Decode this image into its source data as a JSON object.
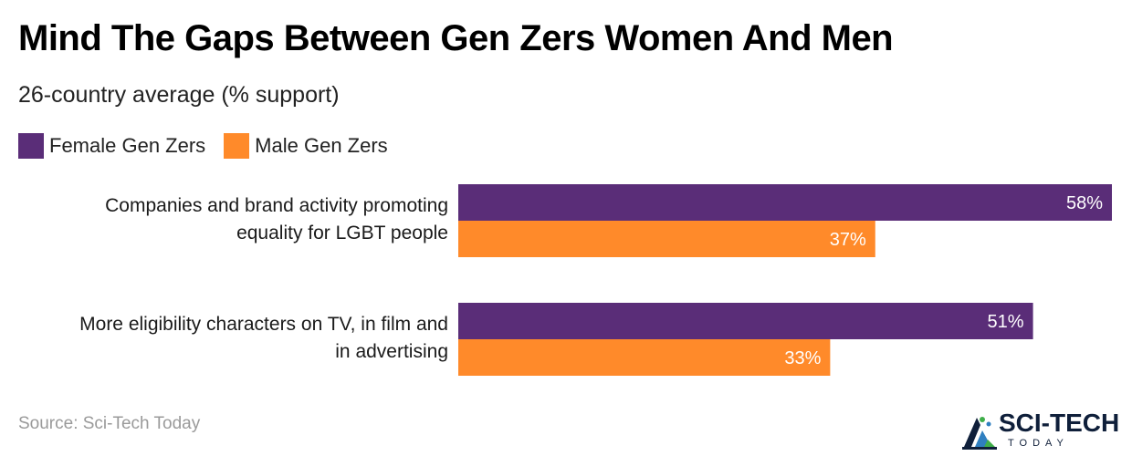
{
  "title": "Mind The Gaps Between Gen Zers Women And Men",
  "subtitle": "26-country average (% support)",
  "legend": {
    "female": {
      "label": "Female Gen Zers",
      "color": "#5a2d78"
    },
    "male": {
      "label": "Male Gen Zers",
      "color": "#ff8a2a"
    }
  },
  "source": "Source: Sci-Tech Today",
  "logo": {
    "name": "SCI-TECH",
    "tagline": "TODAY",
    "icon": "sci-tech-logo-icon"
  },
  "chart_data": {
    "type": "bar",
    "orientation": "horizontal",
    "title": "Mind The Gaps Between Gen Zers Women And Men",
    "subtitle": "26-country average (% support)",
    "categories": [
      [
        "Companies and brand activity promoting",
        "equality for LGBT people"
      ],
      [
        "More eligibility characters on TV, in film and",
        "in advertising"
      ]
    ],
    "series": [
      {
        "name": "Female Gen Zers",
        "values": [
          58,
          51
        ],
        "labels": [
          "58%",
          "51%"
        ],
        "color": "#5a2d78"
      },
      {
        "name": "Male Gen Zers",
        "values": [
          37,
          33
        ],
        "labels": [
          "37%",
          "33%"
        ],
        "color": "#ff8a2a"
      }
    ],
    "xlim": [
      0,
      58
    ],
    "grid": false,
    "legend_position": "top-left"
  }
}
